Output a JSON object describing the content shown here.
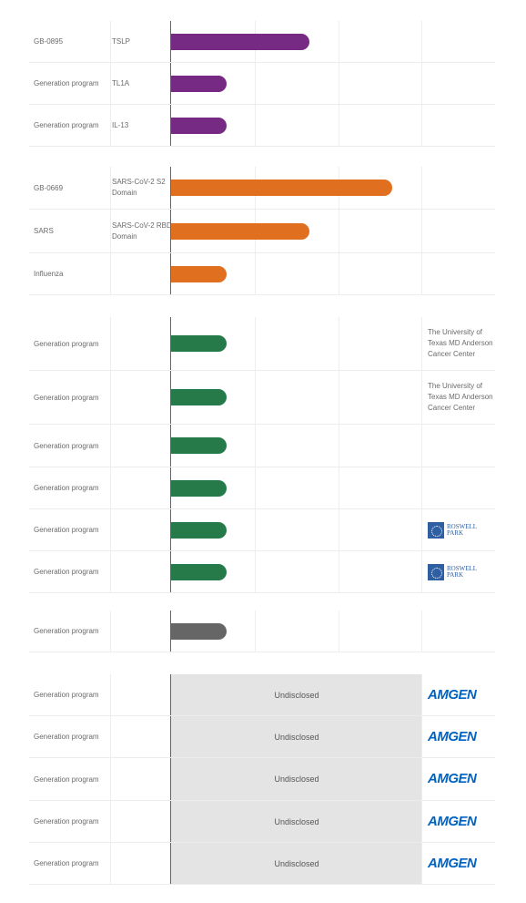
{
  "colors": {
    "purple": "#762a83",
    "orange": "#e06f1f",
    "green": "#267a4a",
    "gray": "#666666",
    "amgen_blue": "#0063c3",
    "roswell_blue": "#2e5fa3"
  },
  "sections": [
    {
      "rows": [
        {
          "name": "GB-0895",
          "target": "TSLP",
          "progress": 0.55,
          "color": "purple"
        },
        {
          "name": "Generation program",
          "target": "TL1A",
          "progress": 0.22,
          "color": "purple"
        },
        {
          "name": "Generation program",
          "target": "IL-13",
          "progress": 0.22,
          "color": "purple"
        }
      ]
    },
    {
      "rows": [
        {
          "name": "GB-0669",
          "target": "SARS-CoV-2 S2 Domain",
          "progress": 0.88,
          "color": "orange"
        },
        {
          "name": "SARS",
          "target": "SARS-CoV-2 RBD Domain",
          "progress": 0.55,
          "color": "orange"
        },
        {
          "name": "Influenza",
          "target": "",
          "progress": 0.22,
          "color": "orange"
        }
      ]
    },
    {
      "rows": [
        {
          "name": "Generation program",
          "target": "",
          "progress": 0.22,
          "color": "green",
          "partner": "The University of Texas MD Anderson Cancer Center"
        },
        {
          "name": "Generation program",
          "target": "",
          "progress": 0.22,
          "color": "green",
          "partner": "The University of Texas MD Anderson Cancer Center"
        },
        {
          "name": "Generation program",
          "target": "",
          "progress": 0.22,
          "color": "green"
        },
        {
          "name": "Generation program",
          "target": "",
          "progress": 0.22,
          "color": "green"
        },
        {
          "name": "Generation program",
          "target": "",
          "progress": 0.22,
          "color": "green",
          "partner_logo": "roswell",
          "logo_text": [
            "ROSWELL",
            "PARK"
          ]
        },
        {
          "name": "Generation program",
          "target": "",
          "progress": 0.22,
          "color": "green",
          "partner_logo": "roswell",
          "logo_text": [
            "ROSWELL",
            "PARK"
          ]
        }
      ]
    },
    {
      "rows": [
        {
          "name": "Generation program",
          "target": "",
          "progress": 0.22,
          "color": "gray"
        }
      ]
    },
    {
      "rows": [
        {
          "name": "Generation program",
          "target": "",
          "status": "Undisclosed",
          "partner_logo": "amgen",
          "logo_text": "AMGEN"
        },
        {
          "name": "Generation program",
          "target": "",
          "status": "Undisclosed",
          "partner_logo": "amgen",
          "logo_text": "AMGEN"
        },
        {
          "name": "Generation program",
          "target": "",
          "status": "Undisclosed",
          "partner_logo": "amgen",
          "logo_text": "AMGEN"
        },
        {
          "name": "Generation program",
          "target": "",
          "status": "Undisclosed",
          "partner_logo": "amgen",
          "logo_text": "AMGEN"
        },
        {
          "name": "Generation program",
          "target": "",
          "status": "Undisclosed",
          "partner_logo": "amgen",
          "logo_text": "AMGEN"
        }
      ]
    }
  ]
}
